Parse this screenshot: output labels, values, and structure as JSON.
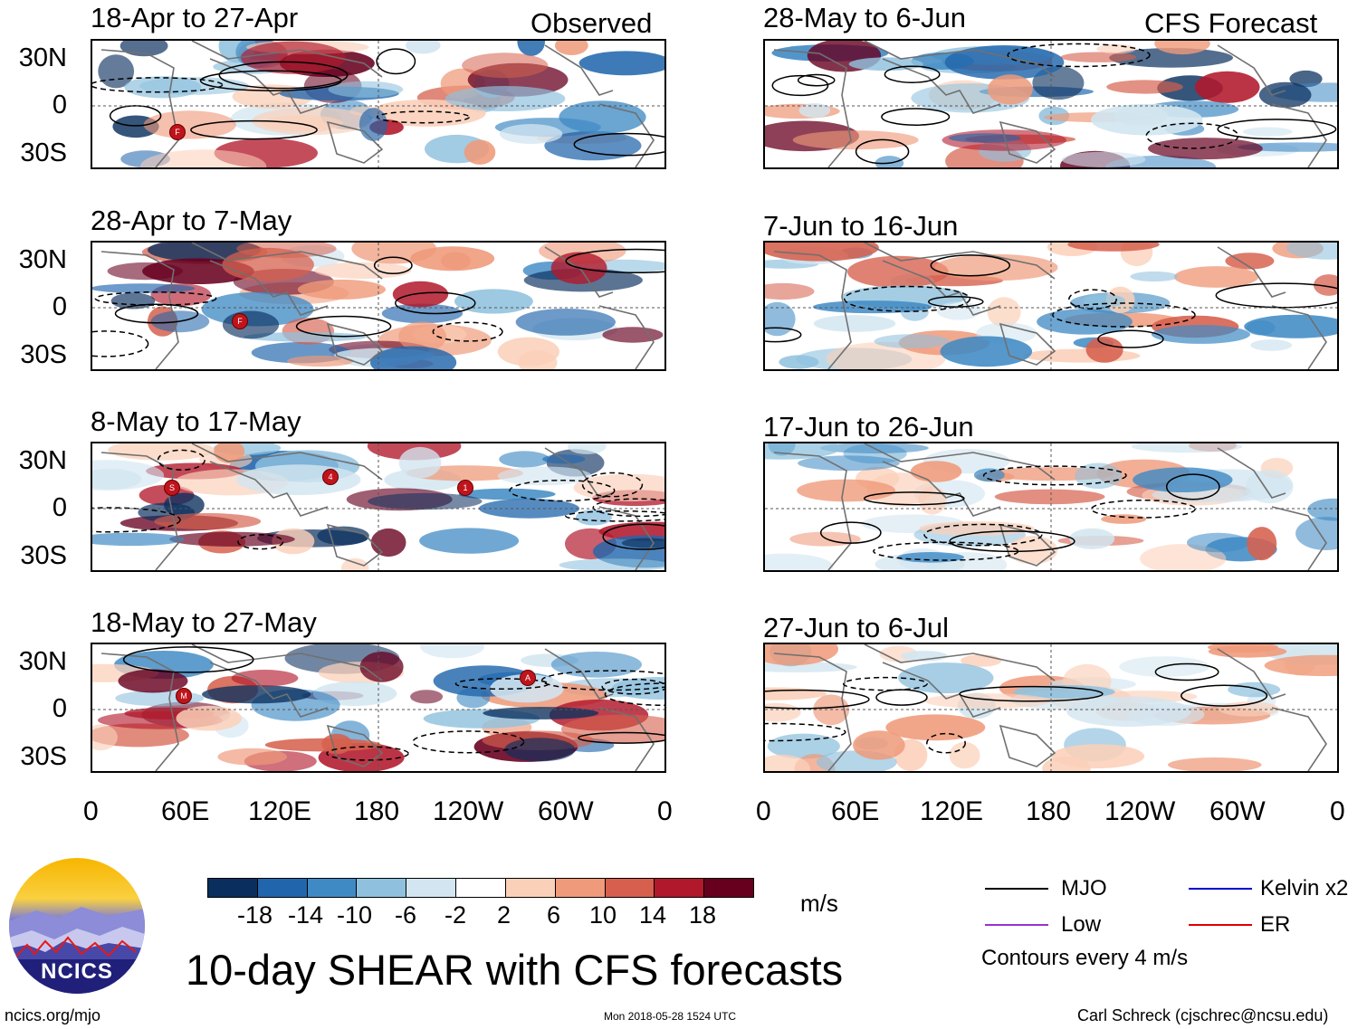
{
  "header": {
    "left_tag": "Observed",
    "right_tag": "CFS Forecast"
  },
  "panels": {
    "observed": [
      {
        "title": "18-Apr to 27-Apr"
      },
      {
        "title": "28-Apr to 7-May"
      },
      {
        "title": "8-May to 17-May"
      },
      {
        "title": "18-May to 27-May"
      }
    ],
    "forecast": [
      {
        "title": "28-May to 6-Jun"
      },
      {
        "title": "7-Jun to 16-Jun"
      },
      {
        "title": "17-Jun to 26-Jun"
      },
      {
        "title": "27-Jun to 6-Jul"
      }
    ]
  },
  "storm_markers": {
    "p0": [
      "F"
    ],
    "p1": [
      "F"
    ],
    "p2": [
      "S",
      "4",
      "1"
    ],
    "p3": [
      "M",
      "A"
    ]
  },
  "axes": {
    "lat_labels": [
      "30N",
      "0",
      "30S"
    ],
    "lon_labels": [
      "0",
      "60E",
      "120E",
      "180",
      "120W",
      "60W",
      "0"
    ]
  },
  "colorbar": {
    "units": "m/s",
    "labels": [
      "-18",
      "-14",
      "-10",
      "-6",
      "-2",
      "2",
      "6",
      "10",
      "14",
      "18"
    ],
    "colors": [
      "#0a2f5e",
      "#2166ac",
      "#3f8ac4",
      "#8fc1de",
      "#d2e5f0",
      "#ffffff",
      "#fbd0b9",
      "#ef9a7a",
      "#d6604d",
      "#b2182b",
      "#67001f"
    ]
  },
  "title": "10-day SHEAR with CFS forecasts",
  "legend": {
    "items": [
      {
        "label": "MJO",
        "color": "#000000"
      },
      {
        "label": "Kelvin x2",
        "color": "#0000cc"
      },
      {
        "label": "Low",
        "color": "#9933cc"
      },
      {
        "label": "ER",
        "color": "#dd0000"
      }
    ],
    "contour_note": "Contours every 4 m/s"
  },
  "logo": {
    "text": "NCICS"
  },
  "footer": {
    "url": "ncics.org/mjo",
    "timestamp": "Mon 2018-05-28 1524 UTC",
    "credit": "Carl Schreck (cjschrec@ncsu.edu)"
  }
}
